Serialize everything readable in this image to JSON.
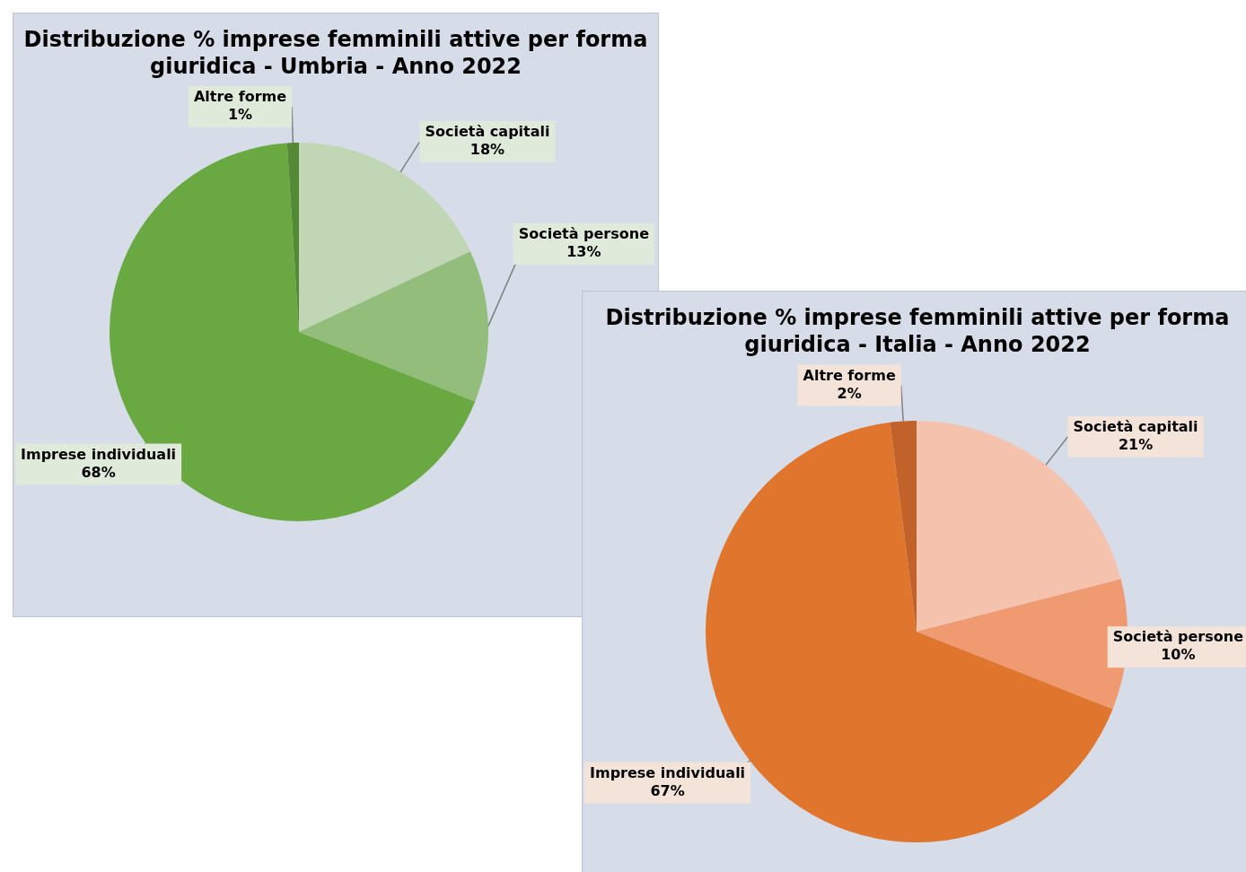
{
  "chart_data": [
    {
      "type": "pie",
      "title": "Distribuzione % imprese femminili attive per forma giuridica - Umbria - Anno 2022",
      "categories": [
        "Società capitali",
        "Società persone",
        "Imprese individuali",
        "Altre forme"
      ],
      "values": [
        18,
        13,
        68,
        1
      ],
      "value_labels": [
        "18%",
        "13%",
        "68%",
        "1%"
      ],
      "colors": [
        "#c0d6b4",
        "#93bd7a",
        "#6aa842",
        "#548a35"
      ],
      "legend": false
    },
    {
      "type": "pie",
      "title": "Distribuzione % imprese femminili attive per forma giuridica - Italia - Anno 2022",
      "categories": [
        "Società capitali",
        "Società persone",
        "Imprese individuali",
        "Altre forme"
      ],
      "values": [
        21,
        10,
        67,
        2
      ],
      "value_labels": [
        "21%",
        "10%",
        "67%",
        "2%"
      ],
      "colors": [
        "#f5c3ad",
        "#f09a72",
        "#e0752d",
        "#c0622a"
      ],
      "legend": false
    }
  ]
}
